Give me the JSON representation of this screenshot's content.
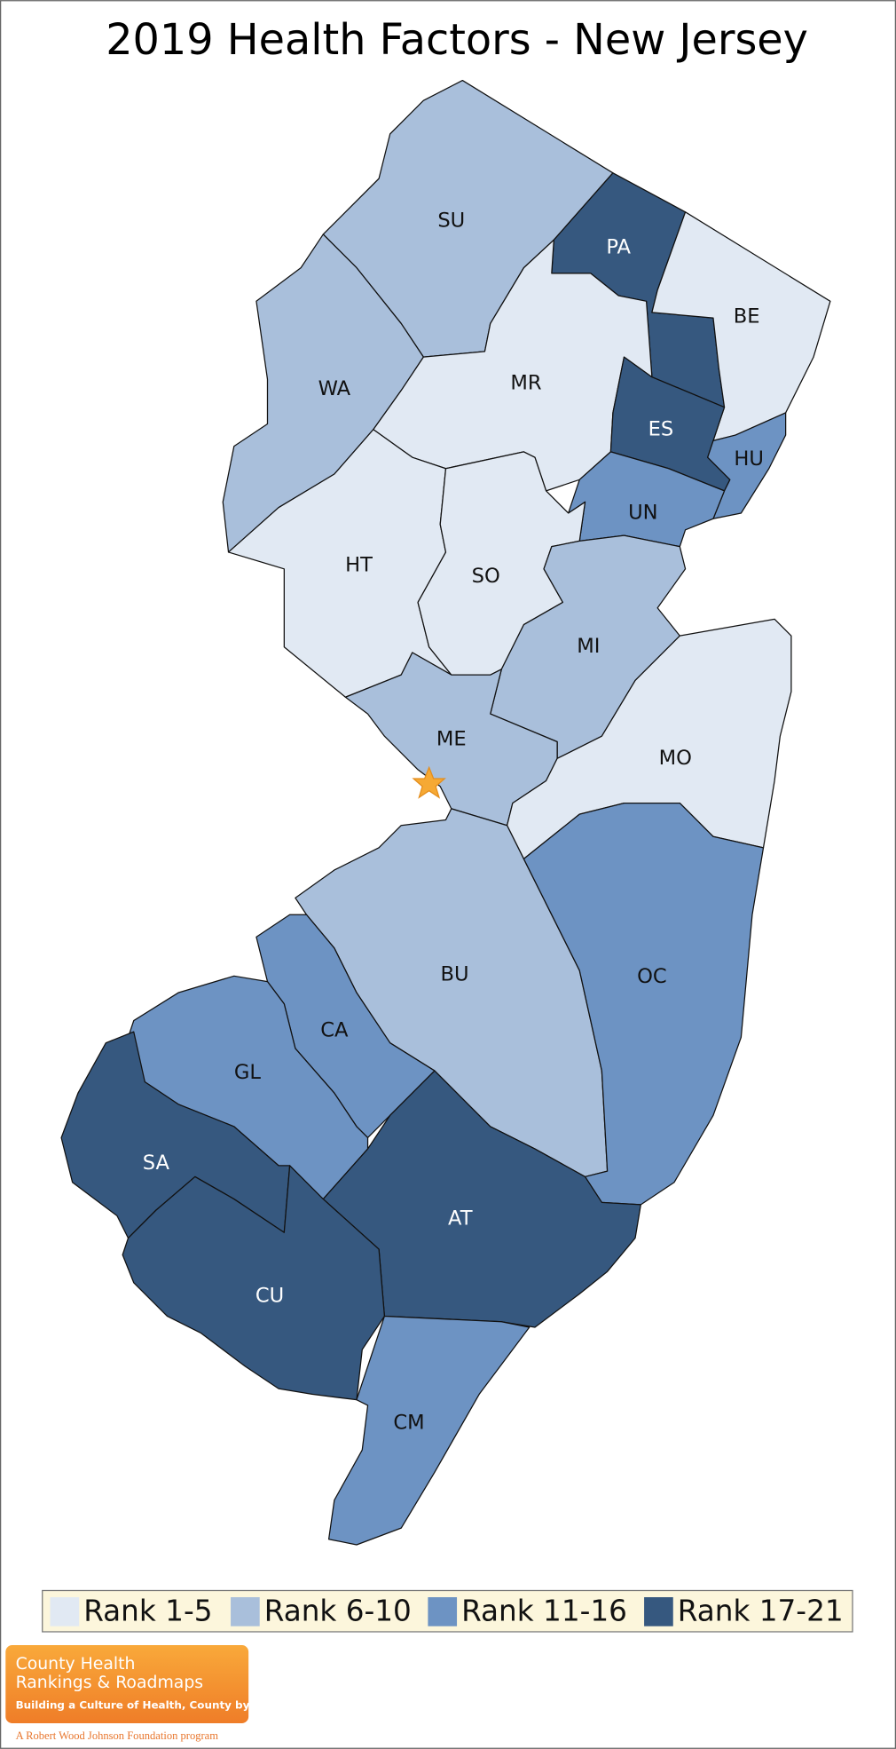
{
  "title": "2019 Health Factors - New Jersey",
  "counties": [
    {
      "label": "SU",
      "color": "#a9bfdb"
    },
    {
      "label": "PA",
      "color": "#36587f"
    },
    {
      "label": "BE",
      "color": "#e1e9f3"
    },
    {
      "label": "WA",
      "color": "#a9bfdb"
    },
    {
      "label": "MR",
      "color": "#e1e9f3"
    },
    {
      "label": "ES",
      "color": "#36587f"
    },
    {
      "label": "HU",
      "color": "#6d93c3"
    },
    {
      "label": "UN",
      "color": "#6d93c3"
    },
    {
      "label": "HT",
      "color": "#e1e9f3"
    },
    {
      "label": "SO",
      "color": "#e1e9f3"
    },
    {
      "label": "MI",
      "color": "#a9bfdb"
    },
    {
      "label": "ME",
      "color": "#a9bfdb"
    },
    {
      "label": "MO",
      "color": "#e1e9f3"
    },
    {
      "label": "BU",
      "color": "#a9bfdb"
    },
    {
      "label": "OC",
      "color": "#6d93c3"
    },
    {
      "label": "CA",
      "color": "#6d93c3"
    },
    {
      "label": "GL",
      "color": "#6d93c3"
    },
    {
      "label": "SA",
      "color": "#36587f"
    },
    {
      "label": "AT",
      "color": "#36587f"
    },
    {
      "label": "CU",
      "color": "#36587f"
    },
    {
      "label": "CM",
      "color": "#6d93c3"
    }
  ],
  "legend": [
    {
      "label": "Rank 1-5",
      "color": "#e1e9f3"
    },
    {
      "label": "Rank 6-10",
      "color": "#a9bfdb"
    },
    {
      "label": "Rank 11-16",
      "color": "#6d93c3"
    },
    {
      "label": "Rank 17-21",
      "color": "#36587f"
    }
  ],
  "logo": {
    "line1": "County Health",
    "line2": "Rankings & Roadmaps",
    "tagline": "Building a Culture of Health, County by County",
    "foundation": "A Robert Wood Johnson Foundation program"
  }
}
